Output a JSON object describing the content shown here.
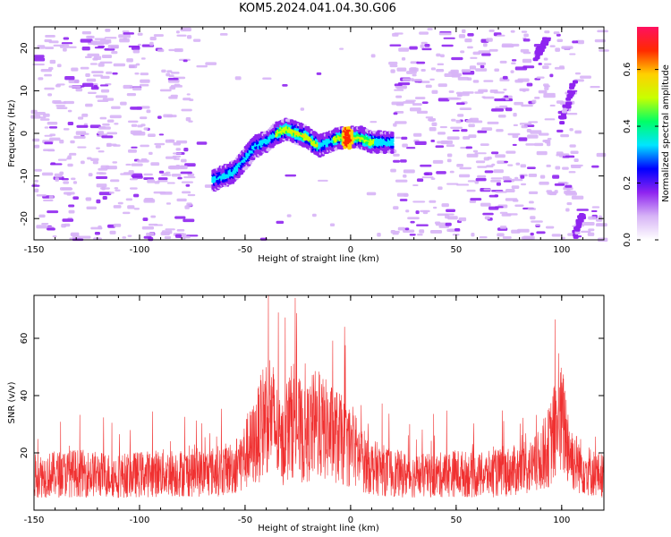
{
  "title": "KOM5.2024.041.04.30.G06",
  "chart_data": [
    {
      "type": "heatmap",
      "xlabel": "Height of straight line (km)",
      "ylabel": "Frequency (Hz)",
      "xlim": [
        -150,
        120
      ],
      "ylim": [
        -25,
        25
      ],
      "xticks": [
        "-150",
        "-100",
        "-50",
        "0",
        "50",
        "100"
      ],
      "yticks": [
        "-20",
        "-10",
        "0",
        "10",
        "20"
      ],
      "colorbar": {
        "label": "Normalized spectral amplitude",
        "range": [
          0.0,
          0.75
        ],
        "ticks": [
          "0.0",
          "0.2",
          "0.4",
          "0.6"
        ]
      },
      "ridge": {
        "x": [
          -65,
          -55,
          -50,
          -45,
          -40,
          -35,
          -30,
          -25,
          -20,
          -15,
          -10,
          -5,
          0,
          5,
          10,
          15,
          20
        ],
        "y": [
          -11,
          -9,
          -6,
          -3,
          -2,
          0,
          1,
          0,
          -1,
          -3,
          -2,
          -1,
          -1,
          -1,
          -2,
          -2,
          -2
        ],
        "peak": {
          "x": -1,
          "y": -1,
          "value": 0.72
        }
      },
      "streaks": [
        {
          "x": [
            88,
            93
          ],
          "y": [
            18,
            22
          ]
        },
        {
          "x": [
            100,
            106
          ],
          "y": [
            3,
            12
          ]
        },
        {
          "x": [
            106,
            110
          ],
          "y": [
            -24,
            -19
          ]
        }
      ],
      "colors": {
        "scale": [
          "#ffffff",
          "#d7b4f6",
          "#8f24f0",
          "#0000ff",
          "#00e5ff",
          "#00ff66",
          "#c8ff00",
          "#ffd000",
          "#ff2a00",
          "#ff1060"
        ]
      }
    },
    {
      "type": "line",
      "xlabel": "Height of straight line (km)",
      "ylabel": "SNR (v/v)",
      "xlim": [
        -150,
        120
      ],
      "ylim": [
        0,
        75
      ],
      "xticks": [
        "-150",
        "-100",
        "-50",
        "0",
        "50",
        "100"
      ],
      "yticks": [
        "20",
        "40",
        "60"
      ],
      "series": [
        {
          "color": "#f03030",
          "x": [
            -150,
            -130,
            -110,
            -90,
            -70,
            -60,
            -55,
            -50,
            -45,
            -42,
            -39,
            -36,
            -33,
            -30,
            -27,
            -25,
            -22,
            -20,
            -17,
            -15,
            -12,
            -10,
            -7,
            -5,
            -3,
            0,
            3,
            5,
            10,
            20,
            30,
            40,
            50,
            60,
            70,
            80,
            85,
            88,
            91,
            94,
            96,
            98,
            100,
            102,
            104,
            106,
            110,
            115,
            120
          ],
          "y": [
            12,
            13,
            12,
            13,
            13,
            14,
            15,
            19,
            24,
            30,
            36,
            30,
            22,
            27,
            33,
            29,
            25,
            27,
            30,
            29,
            28,
            27,
            26,
            25,
            23,
            22,
            20,
            18,
            15,
            13,
            12,
            12,
            13,
            12,
            13,
            14,
            15,
            16,
            19,
            22,
            26,
            30,
            31,
            27,
            20,
            17,
            15,
            13,
            12
          ]
        }
      ]
    }
  ]
}
